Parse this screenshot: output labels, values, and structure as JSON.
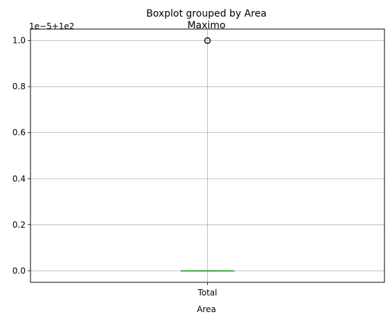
{
  "chart_data": {
    "type": "boxplot",
    "suptitle": "Boxplot grouped by Area",
    "title": "Maximo",
    "xlabel": "Area",
    "ylabel": "",
    "offset_text": "1e−5+1e2",
    "categories": [
      "Total"
    ],
    "y_ticks": [
      0.0,
      0.2,
      0.4,
      0.6,
      0.8,
      1.0
    ],
    "y_tick_labels": [
      "0.0",
      "0.2",
      "0.4",
      "0.6",
      "0.8",
      "1.0"
    ],
    "ylim": [
      -0.05,
      1.05
    ],
    "grid": true,
    "boxes": [
      {
        "category": "Total",
        "whisker_low": 0.0,
        "q1": 0.0,
        "median": 0.0,
        "q3": 0.0,
        "whisker_high": 0.0,
        "outliers": [
          1.0
        ]
      }
    ],
    "colors": {
      "median": "#2ca02c",
      "box": "#1f77b4",
      "grid": "#b0b0b0",
      "axes": "#000000"
    }
  }
}
